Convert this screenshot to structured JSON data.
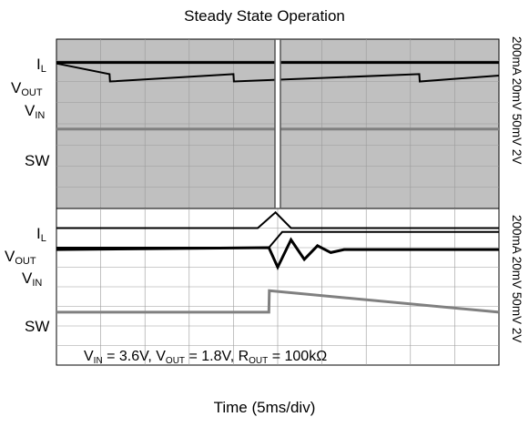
{
  "chart_data": {
    "type": "line",
    "title": "Steady State Operation",
    "xlabel": "Time (5ms/div)",
    "ylabel": "",
    "grid": true,
    "grid_divisions": {
      "x": 10,
      "y": 8
    },
    "panels": [
      {
        "name": "upper",
        "background": "#c0c0c0",
        "channel_labels": [
          {
            "main": "I",
            "sub": "L"
          },
          {
            "main": "V",
            "sub": "OUT"
          },
          {
            "main": "V",
            "sub": "IN"
          },
          {
            "main": "SW",
            "sub": ""
          }
        ],
        "channel_scales": "200mA 20mV 50mV 2V",
        "series": [
          {
            "name": "VOUT",
            "x": [
              0,
              1.2,
              1.21,
              4.0,
              4.01,
              8.2,
              8.21,
              10
            ],
            "y": [
              1.15,
              1.65,
              2.0,
              1.65,
              2.0,
              1.65,
              2.0,
              1.72
            ]
          },
          {
            "name": "VIN",
            "x": [
              0,
              10
            ],
            "y": [
              1.1,
              1.1
            ]
          },
          {
            "name": "SW",
            "x": [
              0,
              10
            ],
            "y": [
              4.25,
              4.25
            ]
          }
        ]
      },
      {
        "name": "lower",
        "background": "#ffffff",
        "channel_labels": [
          {
            "main": "I",
            "sub": "L"
          },
          {
            "main": "V",
            "sub": "OUT"
          },
          {
            "main": "V",
            "sub": "IN"
          },
          {
            "main": "SW",
            "sub": ""
          }
        ],
        "channel_scales": "200mA 20mV 50mV 2V",
        "series": [
          {
            "name": "IL",
            "x": [
              0,
              4.55,
              4.95,
              5.3,
              10
            ],
            "y": [
              1.0,
              1.0,
              0.2,
              1.0,
              1.0
            ]
          },
          {
            "name": "VOUT",
            "x": [
              0,
              4.8,
              5.1,
              10
            ],
            "y": [
              2.0,
              2.0,
              1.2,
              1.2
            ]
          },
          {
            "name": "VIN",
            "x": [
              0,
              4.8,
              5.0,
              5.3,
              5.6,
              5.9,
              6.2,
              6.5,
              10
            ],
            "y": [
              2.1,
              2.0,
              3.0,
              1.6,
              2.6,
              1.9,
              2.25,
              2.1,
              2.1
            ]
          },
          {
            "name": "SW",
            "x": [
              0,
              4.8,
              4.81,
              10
            ],
            "y": [
              5.3,
              5.3,
              4.2,
              5.3
            ]
          }
        ]
      }
    ],
    "annotation": {
      "parts": [
        {
          "t": "V"
        },
        {
          "t": "IN",
          "sub": true
        },
        {
          "t": " = 3.6V, V"
        },
        {
          "t": "OUT",
          "sub": true
        },
        {
          "t": " = 1.8V, R"
        },
        {
          "t": "OUT",
          "sub": true
        },
        {
          "t": " = 100kΩ"
        }
      ]
    },
    "colors": {
      "trace": "#000000",
      "sw_trace": "#808080",
      "upper_bg": "#c0c0c0"
    }
  }
}
